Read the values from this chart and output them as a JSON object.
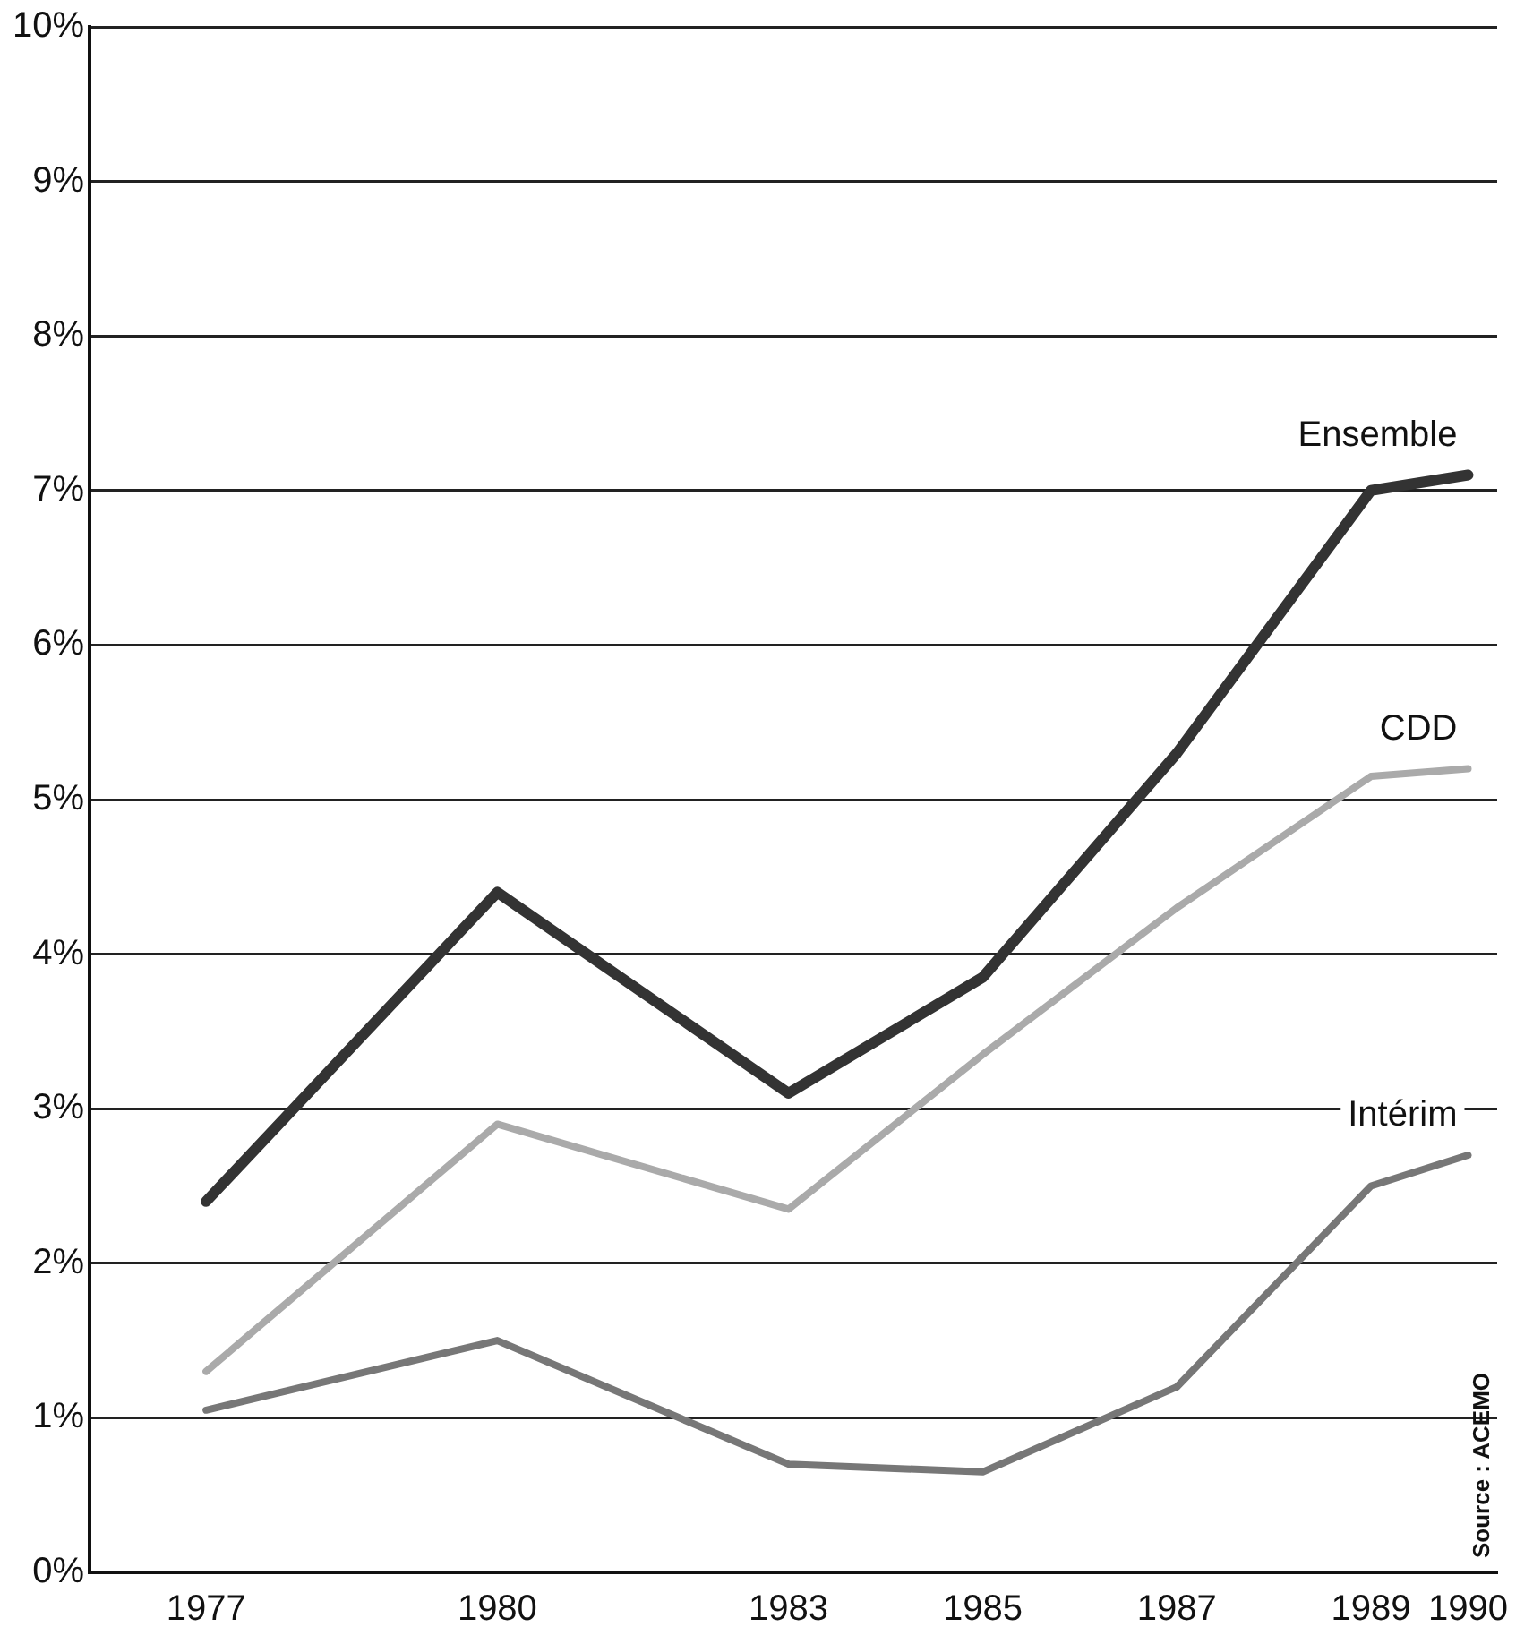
{
  "chart_data": {
    "type": "line",
    "x": [
      1977,
      1980,
      1983,
      1985,
      1987,
      1989,
      1990
    ],
    "series": [
      {
        "name": "Ensemble",
        "color": "#333333",
        "values": [
          2.4,
          4.4,
          3.1,
          3.85,
          5.3,
          7.0,
          7.1
        ]
      },
      {
        "name": "CDD",
        "color": "#aaaaaa",
        "values": [
          1.3,
          2.9,
          2.35,
          3.35,
          4.3,
          5.15,
          5.2
        ]
      },
      {
        "name": "Intérim",
        "color": "#777777",
        "values": [
          1.05,
          1.5,
          0.7,
          0.65,
          1.2,
          2.5,
          2.7
        ]
      }
    ],
    "xlim": [
      1975.8,
      1990.3
    ],
    "xticks": [
      1977,
      1980,
      1983,
      1985,
      1987,
      1989,
      1990
    ],
    "ylim": [
      0,
      10
    ],
    "yticks": [
      {
        "value": 0,
        "label": "0%"
      },
      {
        "value": 1,
        "label": "1%"
      },
      {
        "value": 2,
        "label": "2%"
      },
      {
        "value": 3,
        "label": "3%"
      },
      {
        "value": 4,
        "label": "4%"
      },
      {
        "value": 5,
        "label": "5%"
      },
      {
        "value": 6,
        "label": "6%"
      },
      {
        "value": 7,
        "label": "7%"
      },
      {
        "value": 8,
        "label": "8%"
      },
      {
        "value": 9,
        "label": "9%"
      },
      {
        "value": 10,
        "label": "10%"
      }
    ],
    "grid": "y",
    "legend": false,
    "marker": "none",
    "line_style": "solid",
    "annotations": [
      "Source : ACEMO"
    ]
  }
}
